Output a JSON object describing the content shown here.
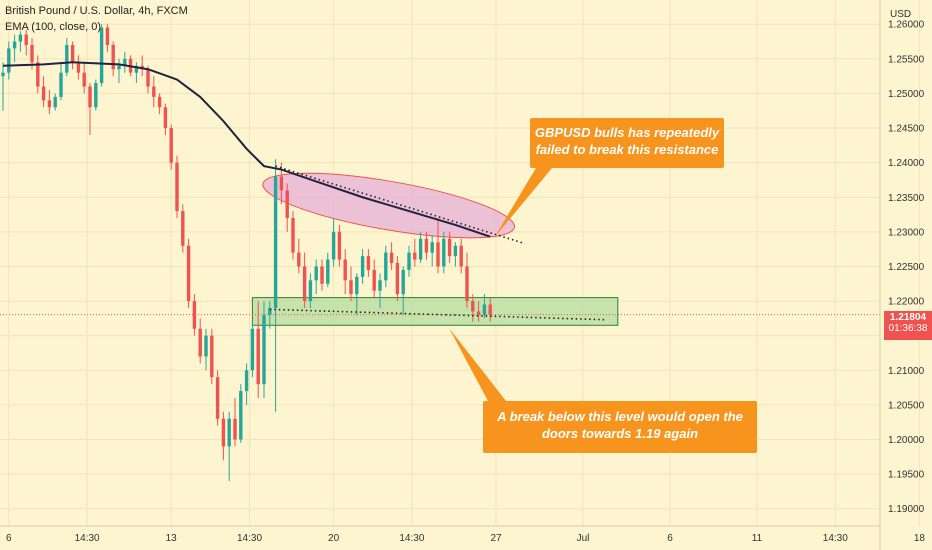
{
  "header": {
    "symbol_line": "British Pound / U.S. Dollar, 4h, FXCM",
    "indicator_line": "EMA (100, close, 0)"
  },
  "axis": {
    "currency": "USD",
    "y_ticks": [
      "1.26000",
      "1.25500",
      "1.25000",
      "1.24500",
      "1.24000",
      "1.23500",
      "1.23000",
      "1.22500",
      "1.22000",
      "1.21500",
      "1.21000",
      "1.20500",
      "1.20000",
      "1.19500",
      "1.19000"
    ],
    "x_ticks": [
      "6",
      "14:30",
      "13",
      "14:30",
      "20",
      "14:30",
      "27",
      "Jul",
      "6",
      "11",
      "14:30",
      "18"
    ]
  },
  "price_tag": {
    "price": "1.21804",
    "countdown": "01:36:38"
  },
  "annotations": {
    "resistance_note": "GBPUSD bulls has repeatedly failed to break this resistance",
    "support_note": "A break below this level would open the doors towards 1.19 again"
  },
  "colors": {
    "background": "#fdf4d0",
    "up_candle": "#26a69a",
    "down_candle": "#ef5350",
    "ema": "#1f2340",
    "note_fill": "#f7941d",
    "ellipse_fill": "#e6b0d8",
    "support_fill": "#b8dfa2"
  },
  "chart_data": {
    "type": "candlestick",
    "ylim": [
      1.1875,
      1.2635
    ],
    "x_tick_positions": [
      1,
      14.5,
      29,
      42.5,
      57,
      70.5,
      85,
      100,
      115,
      130,
      143.5,
      158
    ],
    "current_price": 1.21804,
    "candles": [
      [
        1.2525,
        1.2545,
        1.2475,
        1.253
      ],
      [
        1.253,
        1.2575,
        1.252,
        1.2565
      ],
      [
        1.2565,
        1.2585,
        1.2545,
        1.2575
      ],
      [
        1.2575,
        1.259,
        1.256,
        1.2585
      ],
      [
        1.2585,
        1.2592,
        1.2555,
        1.257
      ],
      [
        1.257,
        1.258,
        1.2535,
        1.2545
      ],
      [
        1.2545,
        1.2555,
        1.25,
        1.251
      ],
      [
        1.251,
        1.2525,
        1.248,
        1.249
      ],
      [
        1.249,
        1.2505,
        1.247,
        1.248
      ],
      [
        1.248,
        1.25,
        1.2475,
        1.2495
      ],
      [
        1.2495,
        1.2545,
        1.249,
        1.253
      ],
      [
        1.253,
        1.258,
        1.2525,
        1.257
      ],
      [
        1.257,
        1.2575,
        1.2535,
        1.2545
      ],
      [
        1.2545,
        1.2555,
        1.252,
        1.253
      ],
      [
        1.253,
        1.2545,
        1.25,
        1.251
      ],
      [
        1.251,
        1.2515,
        1.244,
        1.248
      ],
      [
        1.248,
        1.252,
        1.2475,
        1.2515
      ],
      [
        1.2515,
        1.26,
        1.251,
        1.2595
      ],
      [
        1.2595,
        1.26,
        1.256,
        1.257
      ],
      [
        1.257,
        1.2575,
        1.2525,
        1.2535
      ],
      [
        1.2535,
        1.255,
        1.2515,
        1.254
      ],
      [
        1.254,
        1.256,
        1.253,
        1.255
      ],
      [
        1.255,
        1.2555,
        1.2525,
        1.253
      ],
      [
        1.253,
        1.2545,
        1.2515,
        1.254
      ],
      [
        1.254,
        1.2555,
        1.2525,
        1.2535
      ],
      [
        1.2535,
        1.254,
        1.25,
        1.251
      ],
      [
        1.251,
        1.2525,
        1.248,
        1.2495
      ],
      [
        1.2495,
        1.25,
        1.247,
        1.248
      ],
      [
        1.248,
        1.2485,
        1.244,
        1.245
      ],
      [
        1.245,
        1.2455,
        1.239,
        1.24
      ],
      [
        1.24,
        1.241,
        1.232,
        1.233
      ],
      [
        1.233,
        1.234,
        1.227,
        1.228
      ],
      [
        1.228,
        1.229,
        1.219,
        1.22
      ],
      [
        1.22,
        1.221,
        1.215,
        1.216
      ],
      [
        1.216,
        1.2175,
        1.211,
        1.212
      ],
      [
        1.212,
        1.216,
        1.21,
        1.215
      ],
      [
        1.215,
        1.216,
        1.208,
        1.209
      ],
      [
        1.209,
        1.21,
        1.202,
        1.203
      ],
      [
        1.203,
        1.204,
        1.197,
        1.199
      ],
      [
        1.199,
        1.204,
        1.194,
        1.203
      ],
      [
        1.203,
        1.206,
        1.199,
        1.2
      ],
      [
        1.2,
        1.208,
        1.1995,
        1.207
      ],
      [
        1.207,
        1.211,
        1.205,
        1.21
      ],
      [
        1.21,
        1.217,
        1.209,
        1.216
      ],
      [
        1.216,
        1.22,
        1.206,
        1.208
      ],
      [
        1.208,
        1.22,
        1.206,
        1.218
      ],
      [
        1.218,
        1.22,
        1.216,
        1.219
      ],
      [
        1.219,
        1.2405,
        1.204,
        1.238
      ],
      [
        1.238,
        1.24,
        1.234,
        1.236
      ],
      [
        1.236,
        1.237,
        1.23,
        1.232
      ],
      [
        1.232,
        1.233,
        1.226,
        1.227
      ],
      [
        1.227,
        1.229,
        1.224,
        1.225
      ],
      [
        1.225,
        1.227,
        1.219,
        1.22
      ],
      [
        1.22,
        1.224,
        1.219,
        1.223
      ],
      [
        1.223,
        1.226,
        1.221,
        1.225
      ],
      [
        1.225,
        1.226,
        1.2215,
        1.2225
      ],
      [
        1.2225,
        1.227,
        1.222,
        1.226
      ],
      [
        1.226,
        1.232,
        1.225,
        1.23
      ],
      [
        1.23,
        1.231,
        1.225,
        1.226
      ],
      [
        1.226,
        1.2275,
        1.221,
        1.223
      ],
      [
        1.223,
        1.225,
        1.22,
        1.221
      ],
      [
        1.221,
        1.224,
        1.218,
        1.2235
      ],
      [
        1.2235,
        1.2275,
        1.2225,
        1.2265
      ],
      [
        1.2265,
        1.2275,
        1.2235,
        1.2245
      ],
      [
        1.2245,
        1.226,
        1.2205,
        1.2215
      ],
      [
        1.2215,
        1.224,
        1.219,
        1.223
      ],
      [
        1.223,
        1.228,
        1.222,
        1.227
      ],
      [
        1.227,
        1.2285,
        1.2245,
        1.2255
      ],
      [
        1.2255,
        1.2265,
        1.22,
        1.221
      ],
      [
        1.221,
        1.225,
        1.218,
        1.2245
      ],
      [
        1.2245,
        1.228,
        1.2235,
        1.227
      ],
      [
        1.227,
        1.229,
        1.225,
        1.226
      ],
      [
        1.226,
        1.23,
        1.2255,
        1.229
      ],
      [
        1.229,
        1.23,
        1.226,
        1.227
      ],
      [
        1.227,
        1.2295,
        1.225,
        1.2285
      ],
      [
        1.2285,
        1.232,
        1.224,
        1.225
      ],
      [
        1.225,
        1.23,
        1.224,
        1.229
      ],
      [
        1.229,
        1.23,
        1.2255,
        1.2265
      ],
      [
        1.2265,
        1.2285,
        1.225,
        1.228
      ],
      [
        1.228,
        1.229,
        1.224,
        1.225
      ],
      [
        1.225,
        1.227,
        1.219,
        1.22
      ],
      [
        1.22,
        1.221,
        1.217,
        1.2185
      ],
      [
        1.2185,
        1.22,
        1.217,
        1.218
      ],
      [
        1.218,
        1.221,
        1.2175,
        1.2195
      ],
      [
        1.2195,
        1.2205,
        1.217,
        1.218
      ]
    ],
    "ema_100": [
      [
        0,
        1.254
      ],
      [
        7,
        1.2542
      ],
      [
        12,
        1.2545
      ],
      [
        20,
        1.2542
      ],
      [
        25,
        1.2535
      ],
      [
        30,
        1.252
      ],
      [
        34,
        1.2495
      ],
      [
        38,
        1.246
      ],
      [
        42,
        1.242
      ],
      [
        45,
        1.2395
      ],
      [
        48,
        1.239
      ],
      [
        55,
        1.237
      ],
      [
        62,
        1.235
      ],
      [
        70,
        1.233
      ],
      [
        78,
        1.231
      ],
      [
        84,
        1.2293
      ]
    ],
    "resistance_line": [
      [
        47,
        1.2395
      ],
      [
        90,
        1.2283
      ]
    ],
    "support_line": [
      [
        46,
        1.2188
      ],
      [
        104,
        1.2173
      ]
    ],
    "resistance_zone": {
      "type": "ellipse",
      "cx": 66.5,
      "cy": 1.2338,
      "rx": 22,
      "ry": 0.0035
    },
    "support_zone": {
      "x0": 43,
      "x1": 106,
      "y_top": 1.2205,
      "y_bottom": 1.2165
    }
  }
}
